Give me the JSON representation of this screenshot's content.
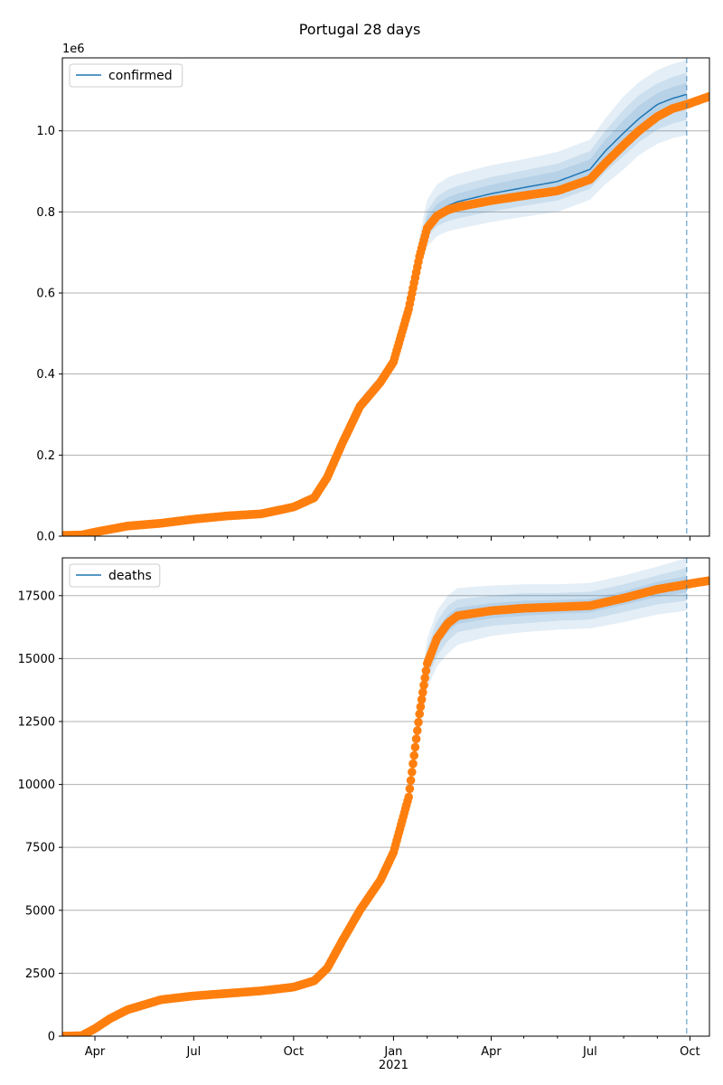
{
  "figure": {
    "title": "Portugal 28 days"
  },
  "chart_data": [
    {
      "type": "line",
      "name": "confirmed-panel",
      "x_type": "date",
      "xlim": [
        "2020-03-02",
        "2021-10-19"
      ],
      "ylim": [
        0,
        1180000
      ],
      "scale_label": "1e6",
      "grid": "horizontal",
      "legend_position": "top-left",
      "forecast_start": "2021-09-28",
      "y_ticks": [
        0,
        200000,
        400000,
        600000,
        800000,
        1000000
      ],
      "y_tick_labels": [
        "0.0",
        "0.2",
        "0.4",
        "0.6",
        "0.8",
        "1.0"
      ],
      "x_tick_labels": [],
      "model_series": {
        "name": "confirmed",
        "color": "#1f77b4",
        "dates": [
          "2020-03-02",
          "2020-03-20",
          "2020-04-01",
          "2020-05-01",
          "2020-06-01",
          "2020-07-01",
          "2020-08-01",
          "2020-09-01",
          "2020-10-01",
          "2020-10-20",
          "2020-11-01",
          "2020-11-15",
          "2020-12-01",
          "2020-12-20",
          "2021-01-01",
          "2021-01-15",
          "2021-01-25",
          "2021-02-01",
          "2021-02-10",
          "2021-02-20",
          "2021-03-01",
          "2021-04-01",
          "2021-05-01",
          "2021-06-01",
          "2021-07-01",
          "2021-07-15",
          "2021-08-01",
          "2021-08-15",
          "2021-09-01",
          "2021-09-15",
          "2021-09-28"
        ],
        "values": [
          2000,
          3000,
          10000,
          25000,
          32000,
          42000,
          50000,
          55000,
          72000,
          95000,
          145000,
          230000,
          320000,
          380000,
          430000,
          560000,
          700000,
          770000,
          800000,
          815000,
          825000,
          845000,
          860000,
          875000,
          905000,
          950000,
          995000,
          1030000,
          1065000,
          1080000,
          1090000
        ],
        "bands": [
          {
            "opacity": 0.12,
            "lower": [
              0,
              0,
              0,
              20000,
              28000,
              37000,
              45000,
              50000,
              65000,
              88000,
              138000,
              218000,
              302000,
              362000,
              415000,
              540000,
              660000,
              715000,
              740000,
              752000,
              758000,
              775000,
              788000,
              800000,
              830000,
              868000,
              905000,
              940000,
              968000,
              982000,
              990000
            ],
            "upper": [
              4000,
              6000,
              16000,
              30000,
              36000,
              47000,
              55000,
              60000,
              79000,
              102000,
              152000,
              242000,
              338000,
              400000,
              447000,
              582000,
              742000,
              830000,
              868000,
              885000,
              894000,
              915000,
              930000,
              948000,
              978000,
              1030000,
              1085000,
              1120000,
              1150000,
              1165000,
              1175000
            ]
          },
          {
            "opacity": 0.12,
            "lower": [
              0,
              1000,
              5000,
              22000,
              30000,
              39000,
              47000,
              52000,
              68000,
              91000,
              141000,
              223000,
              309000,
              370000,
              421000,
              548000,
              675000,
              738000,
              765000,
              777000,
              784000,
              801000,
              815000,
              828000,
              857000,
              898000,
              938000,
              972000,
              1003000,
              1018000,
              1027000
            ],
            "upper": [
              3000,
              5000,
              14000,
              28000,
              34000,
              45000,
              53000,
              58000,
              76000,
              99000,
              149000,
              237000,
              330000,
              392000,
              440000,
              573000,
              725000,
              803000,
              838000,
              855000,
              864000,
              886000,
              902000,
              919000,
              950000,
              1000000,
              1052000,
              1088000,
              1117000,
              1133000,
              1143000
            ]
          },
          {
            "opacity": 0.12,
            "lower": [
              1000,
              2000,
              7000,
              23000,
              31000,
              40000,
              48000,
              53000,
              70000,
              93000,
              143000,
              226000,
              314000,
              375000,
              425000,
              553000,
              686000,
              752000,
              780000,
              794000,
              802000,
              819000,
              833000,
              847000,
              877000,
              920000,
              962000,
              996000,
              1030000,
              1044000,
              1053000
            ],
            "upper": [
              3000,
              4000,
              13000,
              27000,
              33000,
              44000,
              52000,
              57000,
              74000,
              97000,
              147000,
              234000,
              325000,
              386000,
              435000,
              567000,
              714000,
              788000,
              820000,
              836000,
              845000,
              867000,
              884000,
              900000,
              930000,
              978000,
              1026000,
              1062000,
              1093000,
              1108000,
              1118000
            ]
          }
        ]
      },
      "observed": {
        "color": "#ff7f0e",
        "dates": [
          "2020-03-02",
          "2020-03-20",
          "2020-04-01",
          "2020-05-01",
          "2020-06-01",
          "2020-07-01",
          "2020-08-01",
          "2020-09-01",
          "2020-10-01",
          "2020-10-20",
          "2020-11-01",
          "2020-11-15",
          "2020-12-01",
          "2020-12-20",
          "2021-01-01",
          "2021-01-15",
          "2021-01-25",
          "2021-02-01",
          "2021-02-10",
          "2021-02-20",
          "2021-03-01",
          "2021-04-01",
          "2021-05-01",
          "2021-06-01",
          "2021-07-01",
          "2021-07-15",
          "2021-08-01",
          "2021-08-15",
          "2021-09-01",
          "2021-09-15",
          "2021-09-28",
          "2021-10-19"
        ],
        "values": [
          2000,
          3000,
          10000,
          25000,
          32000,
          42000,
          50000,
          55000,
          72000,
          95000,
          145000,
          230000,
          320000,
          380000,
          430000,
          560000,
          690000,
          760000,
          790000,
          805000,
          812000,
          828000,
          840000,
          852000,
          880000,
          920000,
          965000,
          1000000,
          1035000,
          1055000,
          1065000,
          1085000
        ]
      }
    },
    {
      "type": "line",
      "name": "deaths-panel",
      "x_type": "date",
      "xlim": [
        "2020-03-02",
        "2021-10-19"
      ],
      "ylim": [
        0,
        19000
      ],
      "grid": "horizontal",
      "legend_position": "top-left",
      "forecast_start": "2021-09-28",
      "y_ticks": [
        0,
        2500,
        5000,
        7500,
        10000,
        12500,
        15000,
        17500
      ],
      "y_tick_labels": [
        "0",
        "2500",
        "5000",
        "7500",
        "10000",
        "12500",
        "15000",
        "17500"
      ],
      "x_tick_labels": [
        "Apr",
        "Jul",
        "Oct",
        "Jan",
        "Apr",
        "Jul",
        "Oct"
      ],
      "x_tick_dates": [
        "2020-04-01",
        "2020-07-01",
        "2020-10-01",
        "2021-01-01",
        "2021-04-01",
        "2021-07-01",
        "2021-10-01"
      ],
      "x_year_label": "2021",
      "model_series": {
        "name": "deaths",
        "color": "#1f77b4",
        "dates": [
          "2020-03-02",
          "2020-03-20",
          "2020-04-01",
          "2020-04-15",
          "2020-05-01",
          "2020-06-01",
          "2020-07-01",
          "2020-08-01",
          "2020-09-01",
          "2020-10-01",
          "2020-10-20",
          "2020-11-01",
          "2020-11-15",
          "2020-12-01",
          "2020-12-20",
          "2021-01-01",
          "2021-01-15",
          "2021-01-25",
          "2021-02-01",
          "2021-02-10",
          "2021-02-20",
          "2021-03-01",
          "2021-04-01",
          "2021-05-01",
          "2021-06-01",
          "2021-07-01",
          "2021-08-01",
          "2021-09-01",
          "2021-09-28"
        ],
        "values": [
          0,
          20,
          300,
          700,
          1050,
          1450,
          1600,
          1700,
          1800,
          1950,
          2200,
          2700,
          3800,
          5000,
          6200,
          7300,
          9500,
          12800,
          14800,
          15800,
          16400,
          16700,
          16900,
          17000,
          17050,
          17100,
          17400,
          17750,
          17950
        ],
        "bands": [
          {
            "opacity": 0.12,
            "lower": [
              0,
              0,
              250,
              650,
              1000,
              1400,
              1550,
              1650,
              1750,
              1900,
              2150,
              2600,
              3650,
              4850,
              6000,
              7100,
              9200,
              12000,
              13800,
              14700,
              15200,
              15550,
              15900,
              16050,
              16150,
              16200,
              16450,
              16750,
              16900
            ],
            "upper": [
              50,
              60,
              350,
              750,
              1100,
              1500,
              1650,
              1750,
              1850,
              2000,
              2250,
              2800,
              3950,
              5150,
              6400,
              7500,
              9800,
              13600,
              15800,
              16900,
              17500,
              17800,
              17900,
              17950,
              17950,
              18000,
              18300,
              18650,
              19000
            ]
          },
          {
            "opacity": 0.12,
            "lower": [
              0,
              5,
              270,
              670,
              1020,
              1420,
              1570,
              1670,
              1770,
              1920,
              2170,
              2640,
              3710,
              4910,
              6080,
              7180,
              9320,
              12300,
              14200,
              15100,
              15700,
              16050,
              16300,
              16400,
              16500,
              16550,
              16850,
              17150,
              17300
            ],
            "upper": [
              40,
              40,
              330,
              730,
              1080,
              1480,
              1630,
              1730,
              1830,
              1980,
              2230,
              2760,
              3890,
              5090,
              6320,
              7420,
              9680,
              13300,
              15400,
              16500,
              17100,
              17350,
              17500,
              17600,
              17600,
              17650,
              17950,
              18300,
              18600
            ]
          },
          {
            "opacity": 0.12,
            "lower": [
              0,
              10,
              285,
              685,
              1035,
              1435,
              1585,
              1685,
              1785,
              1935,
              2185,
              2670,
              3755,
              4955,
              6140,
              7240,
              9410,
              12550,
              14500,
              15450,
              16050,
              16380,
              16600,
              16700,
              16780,
              16830,
              17130,
              17450,
              17620
            ],
            "upper": [
              20,
              30,
              315,
              715,
              1065,
              1465,
              1615,
              1715,
              1815,
              1965,
              2215,
              2730,
              3845,
              5045,
              6260,
              7360,
              9590,
              13050,
              15100,
              16150,
              16750,
              17020,
              17200,
              17300,
              17320,
              17370,
              17670,
              18050,
              18280
            ]
          }
        ]
      },
      "observed": {
        "color": "#ff7f0e",
        "dates": [
          "2020-03-02",
          "2020-03-20",
          "2020-04-01",
          "2020-04-15",
          "2020-05-01",
          "2020-06-01",
          "2020-07-01",
          "2020-08-01",
          "2020-09-01",
          "2020-10-01",
          "2020-10-20",
          "2020-11-01",
          "2020-11-15",
          "2020-12-01",
          "2020-12-20",
          "2021-01-01",
          "2021-01-15",
          "2021-01-25",
          "2021-02-01",
          "2021-02-10",
          "2021-02-20",
          "2021-03-01",
          "2021-04-01",
          "2021-05-01",
          "2021-06-01",
          "2021-07-01",
          "2021-08-01",
          "2021-09-01",
          "2021-09-28",
          "2021-10-19"
        ],
        "values": [
          0,
          20,
          300,
          700,
          1050,
          1450,
          1600,
          1700,
          1800,
          1950,
          2200,
          2700,
          3800,
          5000,
          6200,
          7300,
          9500,
          12800,
          14800,
          15800,
          16400,
          16700,
          16900,
          17000,
          17050,
          17100,
          17400,
          17750,
          17950,
          18100
        ]
      }
    }
  ]
}
